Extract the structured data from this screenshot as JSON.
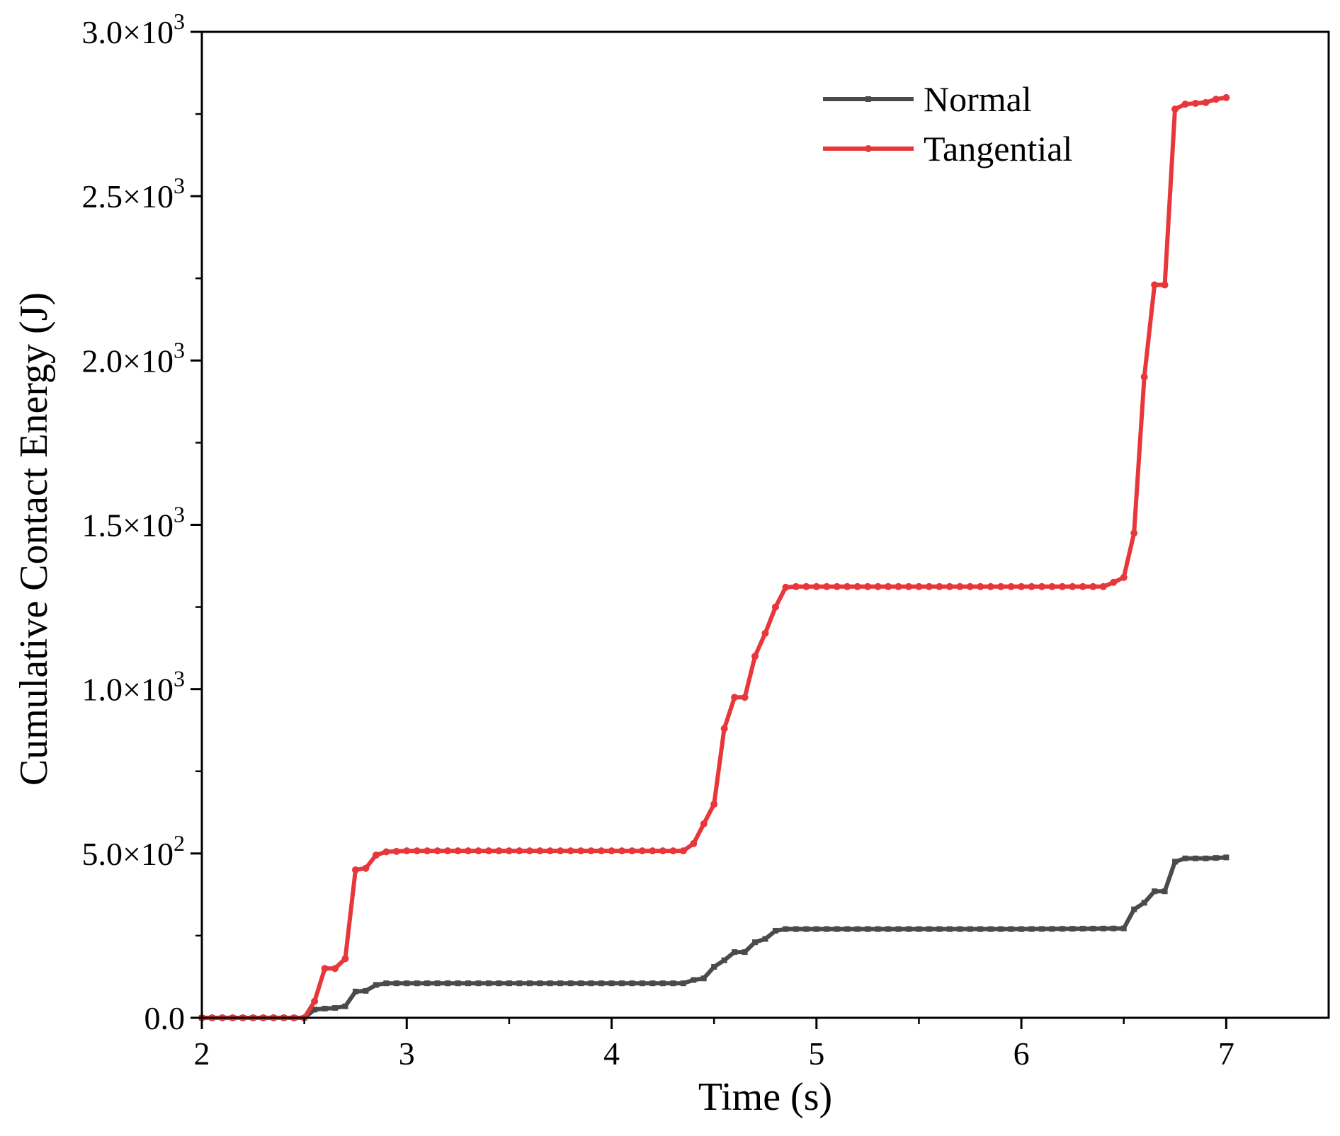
{
  "chart_data": {
    "type": "line",
    "xlabel": "Time (s)",
    "ylabel": "Cumulative Contact Energy (J)",
    "xlim": [
      2,
      7.5
    ],
    "ylim": [
      0,
      3000
    ],
    "x_ticks": [
      2,
      3,
      4,
      5,
      6,
      7
    ],
    "x_tick_labels": [
      "2",
      "3",
      "4",
      "5",
      "6",
      "7"
    ],
    "y_ticks": [
      0,
      500,
      1000,
      1500,
      2000,
      2500,
      3000
    ],
    "y_tick_labels": [
      {
        "mant": "0.0",
        "exp": ""
      },
      {
        "mant": "5.0×10",
        "exp": "2"
      },
      {
        "mant": "1.0×10",
        "exp": "3"
      },
      {
        "mant": "1.5×10",
        "exp": "3"
      },
      {
        "mant": "2.0×10",
        "exp": "3"
      },
      {
        "mant": "2.5×10",
        "exp": "3"
      },
      {
        "mant": "3.0×10",
        "exp": "3"
      }
    ],
    "grid": false,
    "legend_position": "top-right",
    "series": [
      {
        "name": "Normal",
        "color": "#4a4a4a",
        "marker": "square",
        "x": [
          2.0,
          2.5,
          2.55,
          2.6,
          2.65,
          2.7,
          2.75,
          2.8,
          2.85,
          2.9,
          3.0,
          3.5,
          4.0,
          4.35,
          4.4,
          4.45,
          4.5,
          4.55,
          4.6,
          4.65,
          4.7,
          4.75,
          4.8,
          4.85,
          4.9,
          5.5,
          6.0,
          6.5,
          6.55,
          6.6,
          6.65,
          6.7,
          6.75,
          6.8,
          6.9,
          7.0
        ],
        "y": [
          0,
          0,
          25,
          28,
          30,
          35,
          80,
          82,
          100,
          105,
          105,
          105,
          105,
          105,
          115,
          120,
          155,
          175,
          200,
          200,
          230,
          240,
          265,
          270,
          270,
          270,
          270,
          272,
          330,
          350,
          385,
          385,
          475,
          485,
          485,
          488
        ]
      },
      {
        "name": "Tangential",
        "color": "#e8373b",
        "marker": "circle",
        "x": [
          2.0,
          2.5,
          2.55,
          2.6,
          2.65,
          2.7,
          2.75,
          2.8,
          2.85,
          2.9,
          3.0,
          3.5,
          4.0,
          4.35,
          4.4,
          4.45,
          4.5,
          4.55,
          4.6,
          4.65,
          4.7,
          4.75,
          4.8,
          4.85,
          4.9,
          5.5,
          6.0,
          6.4,
          6.45,
          6.5,
          6.55,
          6.6,
          6.65,
          6.7,
          6.75,
          6.8,
          6.9,
          6.95,
          7.0
        ],
        "y": [
          0,
          0,
          50,
          150,
          150,
          180,
          450,
          455,
          495,
          505,
          508,
          508,
          508,
          508,
          530,
          590,
          650,
          880,
          975,
          975,
          1100,
          1170,
          1250,
          1310,
          1312,
          1312,
          1312,
          1312,
          1325,
          1340,
          1475,
          1950,
          2230,
          2230,
          2765,
          2780,
          2785,
          2795,
          2800
        ]
      }
    ]
  }
}
